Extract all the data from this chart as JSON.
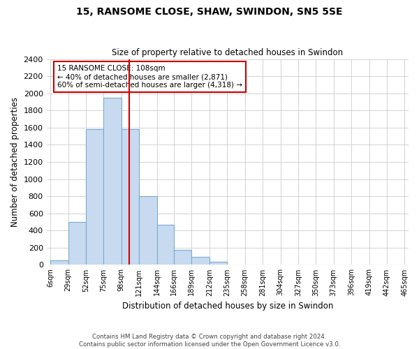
{
  "title": "15, RANSOME CLOSE, SHAW, SWINDON, SN5 5SE",
  "subtitle": "Size of property relative to detached houses in Swindon",
  "xlabel": "Distribution of detached houses by size in Swindon",
  "ylabel": "Number of detached properties",
  "bin_edges": [
    6,
    29,
    52,
    75,
    98,
    121,
    144,
    166,
    189,
    212,
    235,
    258,
    281,
    304,
    327,
    350,
    373,
    396,
    419,
    442,
    465
  ],
  "bar_heights": [
    50,
    500,
    1580,
    1950,
    1580,
    800,
    470,
    175,
    90,
    35,
    0,
    0,
    0,
    0,
    0,
    0,
    0,
    0,
    0,
    0
  ],
  "bar_color": "#c8daf0",
  "bar_edgecolor": "#7aaad0",
  "property_line_x": 108,
  "property_line_color": "#cc0000",
  "ylim": [
    0,
    2400
  ],
  "yticks": [
    0,
    200,
    400,
    600,
    800,
    1000,
    1200,
    1400,
    1600,
    1800,
    2000,
    2200,
    2400
  ],
  "tick_labels": [
    "6sqm",
    "29sqm",
    "52sqm",
    "75sqm",
    "98sqm",
    "121sqm",
    "144sqm",
    "166sqm",
    "189sqm",
    "212sqm",
    "235sqm",
    "258sqm",
    "281sqm",
    "304sqm",
    "327sqm",
    "350sqm",
    "373sqm",
    "396sqm",
    "419sqm",
    "442sqm",
    "465sqm"
  ],
  "annotation_line1": "15 RANSOME CLOSE: 108sqm",
  "annotation_line2": "← 40% of detached houses are smaller (2,871)",
  "annotation_line3": "60% of semi-detached houses are larger (4,318) →",
  "footer_line1": "Contains HM Land Registry data © Crown copyright and database right 2024.",
  "footer_line2": "Contains public sector information licensed under the Open Government Licence v3.0.",
  "bg_color": "#ffffff",
  "grid_color": "#cccccc"
}
